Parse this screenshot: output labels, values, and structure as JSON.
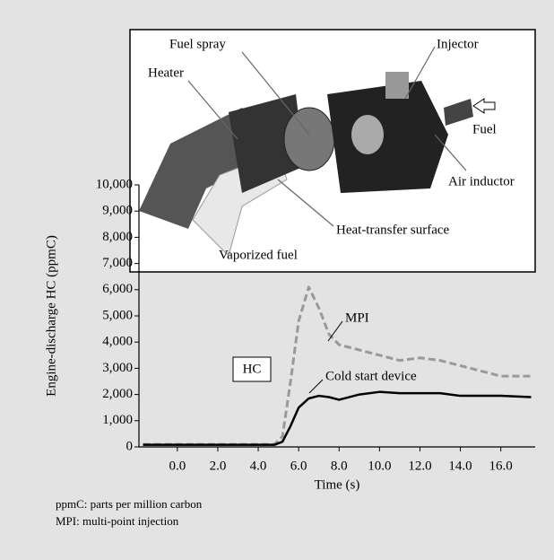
{
  "chart_data": {
    "type": "line",
    "x_label": "Time (s)",
    "y_label": "Engine-discharge HC (ppmC)",
    "x": [
      -1.7,
      4.8,
      5.2,
      5.6,
      6.0,
      6.5,
      7.0,
      7.5,
      8.0,
      9.0,
      10.0,
      11.0,
      12.0,
      13.0,
      14.0,
      15.0,
      16.0,
      17.5
    ],
    "series": [
      {
        "name": "MPI",
        "color": "#999999",
        "dash": true,
        "values": [
          100,
          100,
          400,
          2500,
          4800,
          6100,
          5300,
          4300,
          3900,
          3700,
          3500,
          3300,
          3400,
          3300,
          3100,
          2900,
          2700,
          2700
        ]
      },
      {
        "name": "Cold start device",
        "color": "#000000",
        "dash": false,
        "values": [
          80,
          80,
          200,
          800,
          1500,
          1850,
          1950,
          1900,
          1800,
          2000,
          2100,
          2050,
          2050,
          2050,
          1950,
          1950,
          1950,
          1900
        ]
      }
    ],
    "xlim": [
      -1.9,
      17.7
    ],
    "ylim": [
      0,
      10000
    ],
    "xticks": [
      {
        "value": 0,
        "label": "0.0"
      },
      {
        "value": 2,
        "label": "2.0"
      },
      {
        "value": 4,
        "label": "4.0"
      },
      {
        "value": 6,
        "label": "6.0"
      },
      {
        "value": 8,
        "label": "8.0"
      },
      {
        "value": 10,
        "label": "10.0"
      },
      {
        "value": 12,
        "label": "12.0"
      },
      {
        "value": 14,
        "label": "14.0"
      },
      {
        "value": 16,
        "label": "16.0"
      }
    ],
    "yticks": [
      0,
      {
        "value": 1000,
        "label": "1,000"
      },
      {
        "value": 2000,
        "label": "2,000"
      },
      {
        "value": 3000,
        "label": "3,000"
      },
      {
        "value": 4000,
        "label": "4,000"
      },
      {
        "value": 5000,
        "label": "5,000"
      },
      {
        "value": 6000,
        "label": "6,000"
      },
      {
        "value": 7000,
        "label": "7,000"
      },
      {
        "value": 8000,
        "label": "8,000"
      },
      {
        "value": 9000,
        "label": "9,000"
      },
      {
        "value": 10000,
        "label": "10,000"
      }
    ],
    "box_label": "HC",
    "annotations": [
      "Fuel spray",
      "Heater",
      "Injector",
      "Fuel",
      "Air inductor",
      "Heat-transfer surface",
      "Vaporized fuel"
    ],
    "notes": [
      "ppmC: parts per million carbon",
      "MPI: multi-point injection"
    ]
  }
}
